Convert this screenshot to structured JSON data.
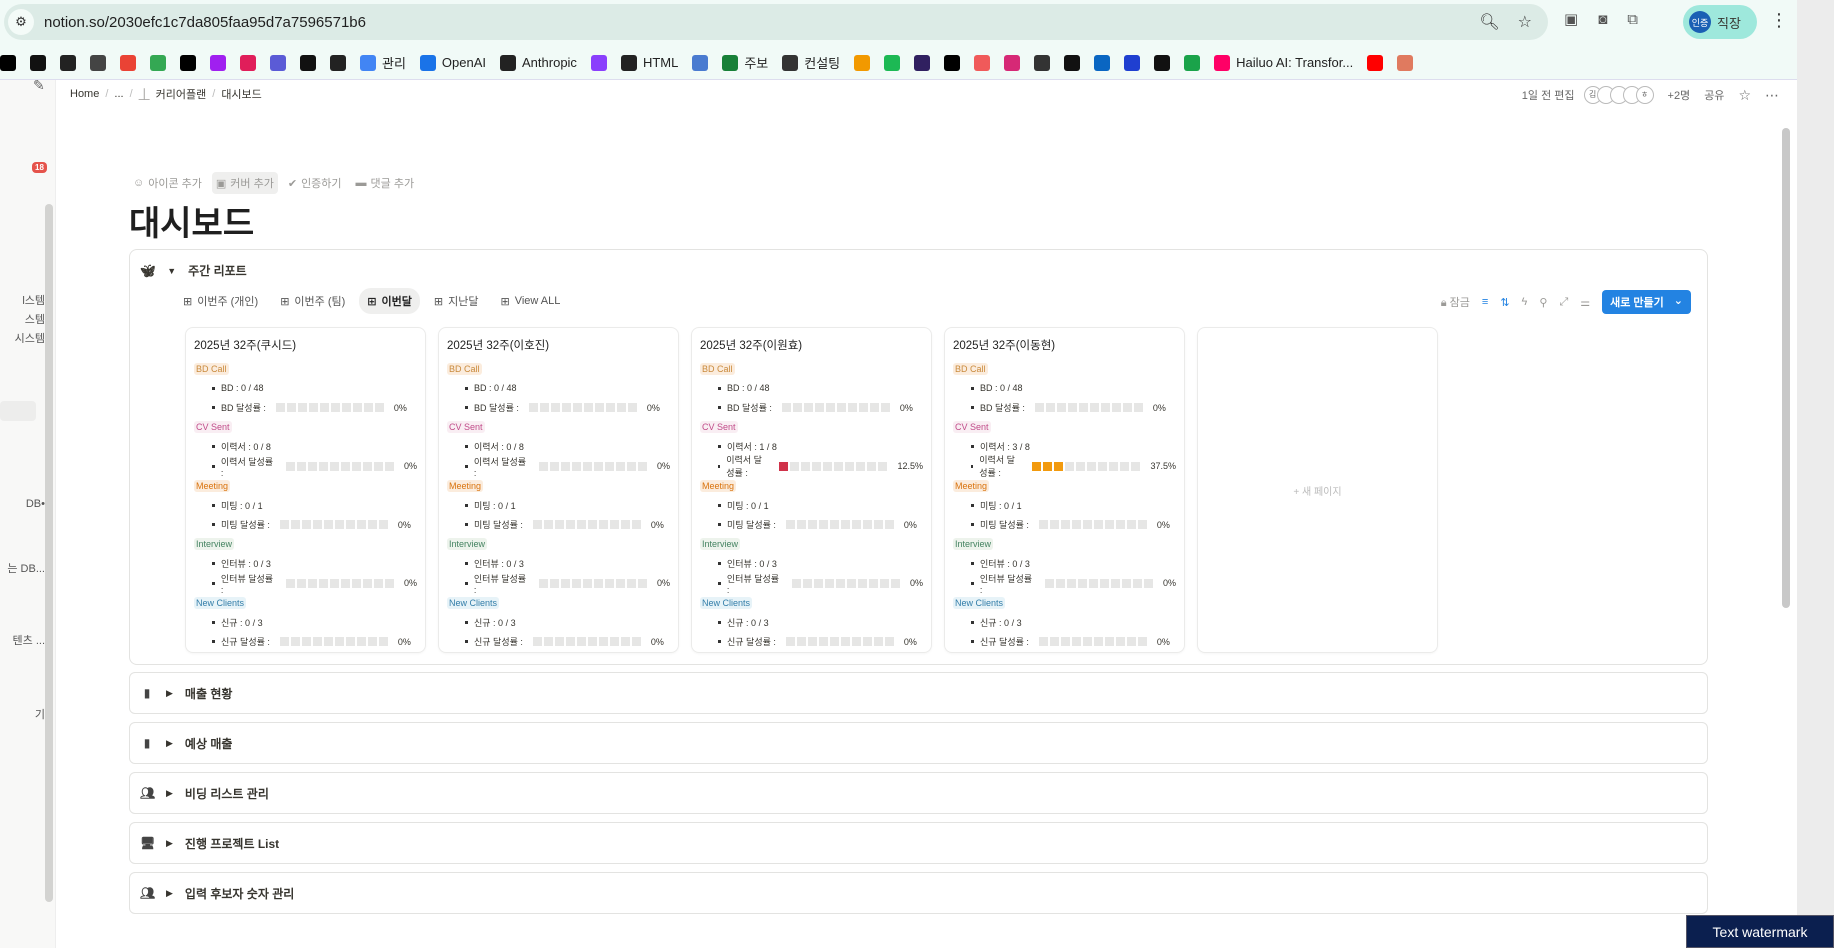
{
  "browser": {
    "url": "notion.so/2030efc1c7da805faa95d7a7596571b6",
    "profile_badge": "인증",
    "profile_label": "직장",
    "bookmarks": [
      {
        "label": "",
        "icon": "bookmark-app-icon",
        "color": "#000"
      },
      {
        "label": "",
        "icon": "bookmark-face-icon",
        "color": "#111"
      },
      {
        "label": "",
        "icon": "bookmark-bug-icon",
        "color": "#222"
      },
      {
        "label": "",
        "icon": "calendar-icon",
        "color": "#444"
      },
      {
        "label": "",
        "icon": "gmail-icon",
        "color": "#ea4335"
      },
      {
        "label": "",
        "icon": "drive-icon",
        "color": "#34a853"
      },
      {
        "label": "",
        "icon": "asterisk-icon",
        "color": "#000"
      },
      {
        "label": "",
        "icon": "make-icon",
        "color": "#a020f0"
      },
      {
        "label": "",
        "icon": "slack-icon",
        "color": "#e01e5a"
      },
      {
        "label": "",
        "icon": "link-icon",
        "color": "#5b5bd6"
      },
      {
        "label": "",
        "icon": "ch-icon",
        "color": "#111"
      },
      {
        "label": "",
        "icon": "notion-icon",
        "color": "#222"
      },
      {
        "label": "관리",
        "icon": "google-icon",
        "color": "#4285f4"
      },
      {
        "label": "OpenAI",
        "icon": "openai-icon",
        "color": "#1a73e8"
      },
      {
        "label": "Anthropic",
        "icon": "anthropic-icon",
        "color": "#222"
      },
      {
        "label": "",
        "icon": "bookmark-purple-icon",
        "color": "#8a3ffc"
      },
      {
        "label": "HTML",
        "icon": "cb-icon",
        "color": "#222"
      },
      {
        "label": "",
        "icon": "people-icon",
        "color": "#4a7bd0"
      },
      {
        "label": "주보",
        "icon": "sheets-plus-icon",
        "color": "#188038"
      },
      {
        "label": "컨설팅",
        "icon": "globe-icon",
        "color": "#333"
      },
      {
        "label": "",
        "icon": "co-icon",
        "color": "#f29900"
      },
      {
        "label": "",
        "icon": "green-app-icon",
        "color": "#1db954"
      },
      {
        "label": "",
        "icon": "image-app-icon",
        "color": "#302060"
      },
      {
        "label": "",
        "icon": "asterisk-icon",
        "color": "#000"
      },
      {
        "label": "",
        "icon": "red-app-icon",
        "color": "#f05a5a"
      },
      {
        "label": "",
        "icon": "instagram-icon",
        "color": "#d62976"
      },
      {
        "label": "",
        "icon": "chatgpt-icon",
        "color": "#333"
      },
      {
        "label": "",
        "icon": "github-icon",
        "color": "#111"
      },
      {
        "label": "",
        "icon": "linkedin-icon",
        "color": "#0a66c2"
      },
      {
        "label": "",
        "icon": "j-icon",
        "color": "#1f3fd0"
      },
      {
        "label": "",
        "icon": "dark-circle-icon",
        "color": "#111"
      },
      {
        "label": "",
        "icon": "green-circle-icon",
        "color": "#1aa34a"
      },
      {
        "label": "Hailuo AI: Transfor...",
        "icon": "hailuo-icon",
        "color": "#f06"
      },
      {
        "label": "",
        "icon": "youtube-icon",
        "color": "#ff0000"
      },
      {
        "label": "",
        "icon": "claude-icon",
        "color": "#e07a5f"
      }
    ]
  },
  "sidebar": {
    "badge": "18",
    "fragments": [
      "l스템",
      "스템",
      "시스템",
      "DB•",
      "는 DB...",
      "텐츠 ...",
      "기"
    ]
  },
  "topbar": {
    "breadcrumb": [
      "Home",
      "...",
      "커리어플랜",
      "대시보드"
    ],
    "edited": "1일 전 편집",
    "avatars": [
      "김",
      "",
      "",
      "",
      "ㅎ"
    ],
    "more_people": "+2명",
    "share": "공유"
  },
  "page": {
    "props": [
      "아이콘 추가",
      "커버 추가",
      "인증하기",
      "댓글 추가"
    ],
    "title": "대시보드"
  },
  "db": {
    "title": "주간 리포트",
    "tabs": [
      "이번주 (개인)",
      "이번주 (팀)",
      "이번달",
      "지난달",
      "View ALL"
    ],
    "active_tab": "이번달",
    "lock": "잠금",
    "new_button": "새로 만들기",
    "new_page": "+ 새 페이지",
    "sections": [
      {
        "name": "BD Call",
        "color": "#c98a3c",
        "bg": "#fbecdd"
      },
      {
        "name": "CV Sent",
        "color": "#c14c8a",
        "bg": "#f9eef3"
      },
      {
        "name": "Meeting",
        "color": "#d9730d",
        "bg": "#fbecdd"
      },
      {
        "name": "Interview",
        "color": "#448361",
        "bg": "#edf3ec"
      },
      {
        "name": "New Clients",
        "color": "#337ea9",
        "bg": "#e7f3f8"
      }
    ],
    "cards": [
      {
        "title": "2025년 32주(쿠시드)",
        "stats": [
          [
            "BD : 0 / 48",
            "BD 달성률 :",
            0,
            ""
          ],
          [
            "이력서 : 0 / 8",
            "이력서 달성률 :",
            0,
            ""
          ],
          [
            "미팅 : 0 / 1",
            "미팅 달성률 :",
            0,
            ""
          ],
          [
            "인터뷰 : 0 / 3",
            "인터뷰 달성률 :",
            0,
            ""
          ],
          [
            "신규 : 0 / 3",
            "신규 달성률 :",
            0,
            ""
          ]
        ]
      },
      {
        "title": "2025년 32주(이호진)",
        "stats": [
          [
            "BD : 0 / 48",
            "BD 달성률 :",
            0,
            ""
          ],
          [
            "이력서 : 0 / 8",
            "이력서 달성률 :",
            0,
            ""
          ],
          [
            "미팅 : 0 / 1",
            "미팅 달성률 :",
            0,
            ""
          ],
          [
            "인터뷰 : 0 / 3",
            "인터뷰 달성률 :",
            0,
            ""
          ],
          [
            "신규 : 0 / 3",
            "신규 달성률 :",
            0,
            ""
          ]
        ]
      },
      {
        "title": "2025년 32주(이원효)",
        "stats": [
          [
            "BD : 0 / 48",
            "BD 달성률 :",
            0,
            ""
          ],
          [
            "이력서 : 1 / 8",
            "이력서 달성률 :",
            12.5,
            "#d0324a"
          ],
          [
            "미팅 : 0 / 1",
            "미팅 달성률 :",
            0,
            ""
          ],
          [
            "인터뷰 : 0 / 3",
            "인터뷰 달성률 :",
            0,
            ""
          ],
          [
            "신규 : 0 / 3",
            "신규 달성률 :",
            0,
            ""
          ]
        ]
      },
      {
        "title": "2025년 32주(이동현)",
        "stats": [
          [
            "BD : 0 / 48",
            "BD 달성률 :",
            0,
            ""
          ],
          [
            "이력서 : 3 / 8",
            "이력서 달성률 :",
            37.5,
            "#f29a0e"
          ],
          [
            "미팅 : 0 / 1",
            "미팅 달성률 :",
            0,
            ""
          ],
          [
            "인터뷰 : 0 / 3",
            "인터뷰 달성률 :",
            0,
            ""
          ],
          [
            "신규 : 0 / 3",
            "신규 달성률 :",
            0,
            ""
          ]
        ]
      }
    ]
  },
  "collapsed_sections": [
    {
      "label": "매출 현황",
      "icon": "book-icon"
    },
    {
      "label": "예상 매출",
      "icon": "book-icon"
    },
    {
      "label": "비딩 리스트 관리",
      "icon": "people-icon"
    },
    {
      "label": "진행 프로젝트 List",
      "icon": "monitor-icon"
    },
    {
      "label": "입력 후보자 숫자 관리",
      "icon": "people-icon"
    }
  ],
  "watermark": "Text watermark"
}
